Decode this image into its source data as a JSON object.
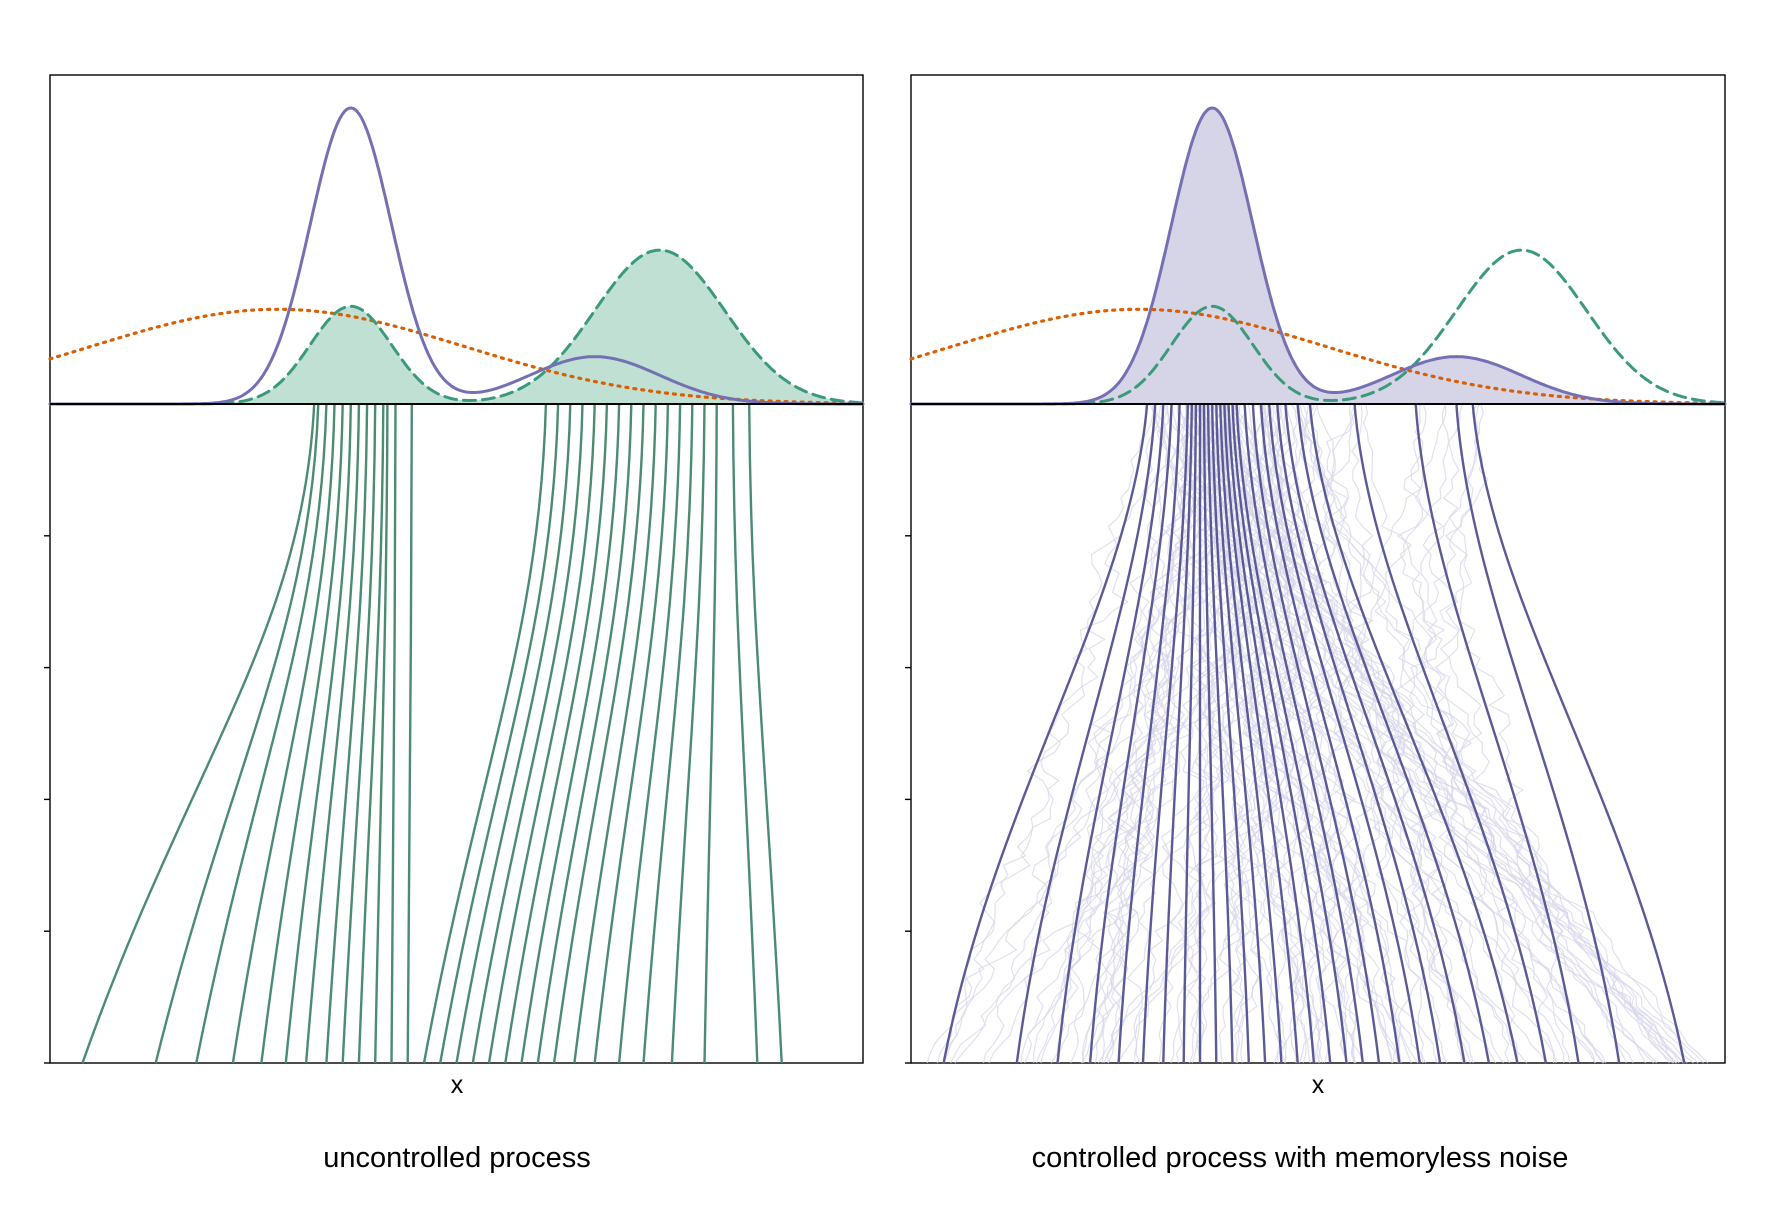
{
  "colors": {
    "target": "#7570b3",
    "model": "#3b9a7c",
    "prior": "#d95f02",
    "green_paths": "#4b8b71",
    "purple_paths": "#5c5a96",
    "noise": "#d7d6ea",
    "green_fill": "#bfe0d3",
    "purple_fill": "#d6d5e8",
    "axis": "#000000"
  },
  "chart_data": [
    {
      "type": "line",
      "title": "uncontrolled process",
      "xlabel": "x",
      "ylabel": "",
      "xlim": [
        0,
        1
      ],
      "time_range": [
        0,
        1
      ],
      "filled_density": "model",
      "densities": [
        {
          "key": "target",
          "style": "solid",
          "components": [
            [
              0.37,
              0.05,
              1.0
            ],
            [
              0.67,
              0.08,
              0.16
            ]
          ]
        },
        {
          "key": "model",
          "style": "dashed",
          "components": [
            [
              0.37,
              0.05,
              0.33
            ],
            [
              0.75,
              0.08,
              0.52
            ]
          ]
        },
        {
          "key": "prior",
          "style": "dotted",
          "components": [
            [
              0.28,
              0.23,
              0.32
            ]
          ]
        }
      ],
      "paths": {
        "start_x": [
          0.04,
          0.13,
          0.18,
          0.225,
          0.26,
          0.29,
          0.315,
          0.34,
          0.36,
          0.38,
          0.4,
          0.42,
          0.44,
          0.46,
          0.48,
          0.5,
          0.52,
          0.54,
          0.56,
          0.58,
          0.6,
          0.62,
          0.645,
          0.67,
          0.7,
          0.73,
          0.765,
          0.805,
          0.87,
          0.9
        ],
        "end_x": [
          0.325,
          0.33,
          0.34,
          0.35,
          0.36,
          0.37,
          0.38,
          0.39,
          0.4,
          0.41,
          0.415,
          0.425,
          0.445,
          0.61,
          0.625,
          0.64,
          0.655,
          0.67,
          0.685,
          0.7,
          0.715,
          0.73,
          0.745,
          0.76,
          0.775,
          0.79,
          0.805,
          0.82,
          0.84,
          0.86
        ]
      }
    },
    {
      "type": "line",
      "title": "controlled process with memoryless noise",
      "xlabel": "x",
      "ylabel": "",
      "xlim": [
        0,
        1
      ],
      "time_range": [
        0,
        1
      ],
      "filled_density": "target",
      "densities": [
        {
          "key": "target",
          "style": "solid",
          "components": [
            [
              0.37,
              0.05,
              1.0
            ],
            [
              0.67,
              0.08,
              0.16
            ]
          ]
        },
        {
          "key": "model",
          "style": "dashed",
          "components": [
            [
              0.37,
              0.05,
              0.33
            ],
            [
              0.75,
              0.08,
              0.52
            ]
          ]
        },
        {
          "key": "prior",
          "style": "dotted",
          "components": [
            [
              0.28,
              0.23,
              0.32
            ]
          ]
        }
      ],
      "paths": {
        "start_x": [
          0.04,
          0.13,
          0.18,
          0.22,
          0.255,
          0.285,
          0.31,
          0.335,
          0.355,
          0.375,
          0.395,
          0.415,
          0.435,
          0.455,
          0.475,
          0.495,
          0.515,
          0.535,
          0.555,
          0.575,
          0.6,
          0.625,
          0.65,
          0.68,
          0.71,
          0.745,
          0.78,
          0.82,
          0.87,
          0.95
        ],
        "end_x": [
          0.29,
          0.3,
          0.31,
          0.32,
          0.33,
          0.34,
          0.345,
          0.35,
          0.355,
          0.36,
          0.365,
          0.37,
          0.375,
          0.38,
          0.385,
          0.39,
          0.395,
          0.4,
          0.41,
          0.42,
          0.43,
          0.44,
          0.45,
          0.46,
          0.475,
          0.49,
          0.545,
          0.62,
          0.67,
          0.69
        ]
      }
    }
  ]
}
